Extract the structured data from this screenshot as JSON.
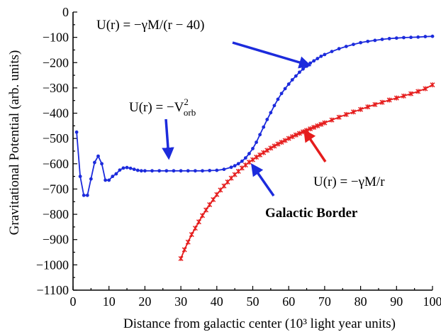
{
  "chart_data": {
    "type": "line",
    "xlabel": "Distance from galactic center (10³ light year units)",
    "ylabel": "Gravitational Potential (arb. units)",
    "xlim": [
      0,
      100
    ],
    "ylim": [
      -1100,
      0
    ],
    "xticks": [
      0,
      10,
      20,
      30,
      40,
      50,
      60,
      70,
      80,
      90,
      100
    ],
    "yticks": [
      0,
      -100,
      -200,
      -300,
      -400,
      -500,
      -600,
      -700,
      -800,
      -900,
      -1000,
      -1100
    ],
    "grid": false,
    "legend": "none",
    "series": [
      {
        "color": "#1c2bdc",
        "marker": "circle",
        "x": [
          1,
          2,
          3,
          4,
          5,
          6,
          7,
          8,
          9,
          10,
          11,
          12,
          13,
          14,
          15,
          16,
          17,
          18,
          19,
          20,
          22,
          24,
          26,
          28,
          30,
          32,
          34,
          36,
          38,
          40,
          42,
          44,
          45,
          46,
          47,
          48,
          49,
          50,
          51,
          52,
          53,
          54,
          55,
          56,
          57,
          58,
          59,
          60,
          61,
          62,
          63,
          64,
          65,
          66,
          67,
          68,
          69,
          70,
          72,
          74,
          76,
          78,
          80,
          82,
          84,
          86,
          88,
          90,
          92,
          94,
          96,
          98,
          100
        ],
        "y": [
          -475,
          -650,
          -725,
          -725,
          -660,
          -595,
          -570,
          -600,
          -665,
          -665,
          -650,
          -640,
          -625,
          -617,
          -615,
          -618,
          -622,
          -626,
          -628,
          -628,
          -628,
          -628,
          -628,
          -628,
          -628,
          -628,
          -628,
          -628,
          -627,
          -626,
          -622,
          -614,
          -608,
          -600,
          -590,
          -577,
          -560,
          -540,
          -515,
          -485,
          -455,
          -425,
          -398,
          -370,
          -345,
          -322,
          -303,
          -285,
          -268,
          -253,
          -238,
          -225,
          -214,
          -202,
          -193,
          -184,
          -175,
          -168,
          -156,
          -145,
          -136,
          -128,
          -121,
          -116,
          -112,
          -108,
          -105,
          -103,
          -101,
          -100,
          -99,
          -97,
          -96
        ]
      },
      {
        "color": "#e51c1c",
        "marker": "star",
        "x": [
          30,
          31,
          32,
          33,
          34,
          35,
          36,
          37,
          38,
          39,
          40,
          41,
          42,
          43,
          44,
          45,
          46,
          47,
          48,
          49,
          50,
          51,
          52,
          53,
          54,
          55,
          56,
          57,
          58,
          59,
          60,
          61,
          62,
          63,
          64,
          65,
          66,
          67,
          68,
          69,
          70,
          72,
          74,
          76,
          78,
          80,
          82,
          84,
          86,
          88,
          90,
          92,
          94,
          96,
          98,
          100
        ],
        "y": [
          -975,
          -940,
          -910,
          -880,
          -855,
          -830,
          -805,
          -783,
          -762,
          -742,
          -722,
          -704,
          -688,
          -672,
          -657,
          -643,
          -630,
          -617,
          -605,
          -594,
          -584,
          -574,
          -565,
          -556,
          -547,
          -538,
          -530,
          -522,
          -515,
          -508,
          -500,
          -493,
          -486,
          -480,
          -474,
          -468,
          -462,
          -456,
          -450,
          -444,
          -438,
          -427,
          -416,
          -405,
          -395,
          -385,
          -375,
          -366,
          -357,
          -348,
          -340,
          -332,
          -323,
          -314,
          -303,
          -288
        ]
      }
    ],
    "annotations": {
      "formula_top": {
        "prefix": "U(r) = −γM/(r − 40)"
      },
      "formula_orb": {
        "text": "U(r) = −V",
        "sup": "2",
        "sub": "orb"
      },
      "formula_red": {
        "text": "U(r) = −γM/r"
      },
      "border_label": "Galactic Border"
    }
  }
}
